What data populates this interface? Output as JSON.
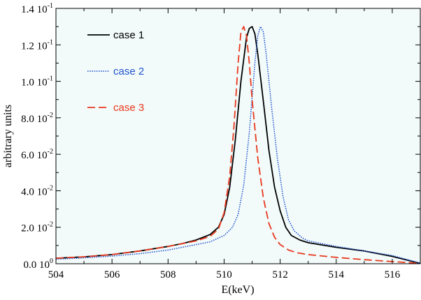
{
  "chart_data": {
    "type": "line",
    "title": "",
    "xlabel": "E(keV)",
    "ylabel": "arbitrary units",
    "xlim": [
      504,
      517
    ],
    "ylim": [
      0,
      0.14
    ],
    "grid": false,
    "legend_position": "top-left",
    "plot_background": "#f2fafa",
    "x_ticks": [
      {
        "value": 504,
        "label": "504"
      },
      {
        "value": 506,
        "label": "506"
      },
      {
        "value": 508,
        "label": "508"
      },
      {
        "value": 510,
        "label": "510"
      },
      {
        "value": 512,
        "label": "512"
      },
      {
        "value": 514,
        "label": "514"
      },
      {
        "value": 516,
        "label": "516"
      }
    ],
    "y_ticks": [
      {
        "value": 0.0,
        "mantissa": "0.0",
        "exponent": "0"
      },
      {
        "value": 0.02,
        "mantissa": "2.0",
        "exponent": "-2"
      },
      {
        "value": 0.04,
        "mantissa": "4.0",
        "exponent": "-2"
      },
      {
        "value": 0.06,
        "mantissa": "6.0",
        "exponent": "-2"
      },
      {
        "value": 0.08,
        "mantissa": "8.0",
        "exponent": "-2"
      },
      {
        "value": 0.1,
        "mantissa": "1.0",
        "exponent": "-1"
      },
      {
        "value": 0.12,
        "mantissa": "1.2",
        "exponent": "-1"
      },
      {
        "value": 0.14,
        "mantissa": "1.4",
        "exponent": "-1"
      }
    ],
    "series": [
      {
        "name": "case 1",
        "color": "#000000",
        "dash": "solid",
        "x": [
          504,
          505,
          506,
          507,
          508,
          508.5,
          509,
          509.5,
          509.8,
          510,
          510.2,
          510.4,
          510.6,
          510.8,
          510.9,
          511,
          511.1,
          511.2,
          511.4,
          511.6,
          511.8,
          512,
          512.2,
          512.4,
          512.7,
          513,
          514,
          515,
          516,
          517
        ],
        "y": [
          0.003,
          0.0038,
          0.005,
          0.007,
          0.0095,
          0.011,
          0.013,
          0.016,
          0.02,
          0.027,
          0.042,
          0.068,
          0.1,
          0.124,
          0.129,
          0.13,
          0.126,
          0.115,
          0.089,
          0.062,
          0.042,
          0.029,
          0.02,
          0.0155,
          0.013,
          0.0115,
          0.009,
          0.007,
          0.004,
          0.0002
        ]
      },
      {
        "name": "case 2",
        "color": "#2255cc",
        "dash": "dotted",
        "x": [
          504,
          505,
          506,
          507,
          508,
          509,
          509.5,
          510,
          510.3,
          510.5,
          510.7,
          510.9,
          511.1,
          511.2,
          511.3,
          511.4,
          511.5,
          511.7,
          511.9,
          512.1,
          512.3,
          512.5,
          512.8,
          513,
          514,
          515,
          516,
          517
        ],
        "y": [
          0.0025,
          0.0032,
          0.0042,
          0.0055,
          0.0075,
          0.0105,
          0.012,
          0.0155,
          0.02,
          0.027,
          0.043,
          0.072,
          0.11,
          0.125,
          0.13,
          0.127,
          0.115,
          0.085,
          0.058,
          0.037,
          0.024,
          0.018,
          0.014,
          0.0125,
          0.0095,
          0.007,
          0.0045,
          0.0003
        ]
      },
      {
        "name": "case 3",
        "color": "#e8391e",
        "dash": "dashed",
        "x": [
          504,
          505,
          506,
          507,
          508,
          509,
          509.5,
          509.8,
          510,
          510.2,
          510.35,
          510.5,
          510.6,
          510.7,
          510.8,
          510.9,
          511,
          511.2,
          511.4,
          511.6,
          511.8,
          512,
          512.3,
          512.6,
          513,
          514,
          515,
          516,
          517
        ],
        "y": [
          0.003,
          0.0038,
          0.005,
          0.007,
          0.0095,
          0.0125,
          0.015,
          0.019,
          0.028,
          0.048,
          0.075,
          0.11,
          0.127,
          0.13,
          0.125,
          0.11,
          0.09,
          0.058,
          0.036,
          0.022,
          0.0145,
          0.0105,
          0.0075,
          0.006,
          0.005,
          0.0035,
          0.0022,
          0.0012,
          0.0002
        ]
      }
    ]
  }
}
